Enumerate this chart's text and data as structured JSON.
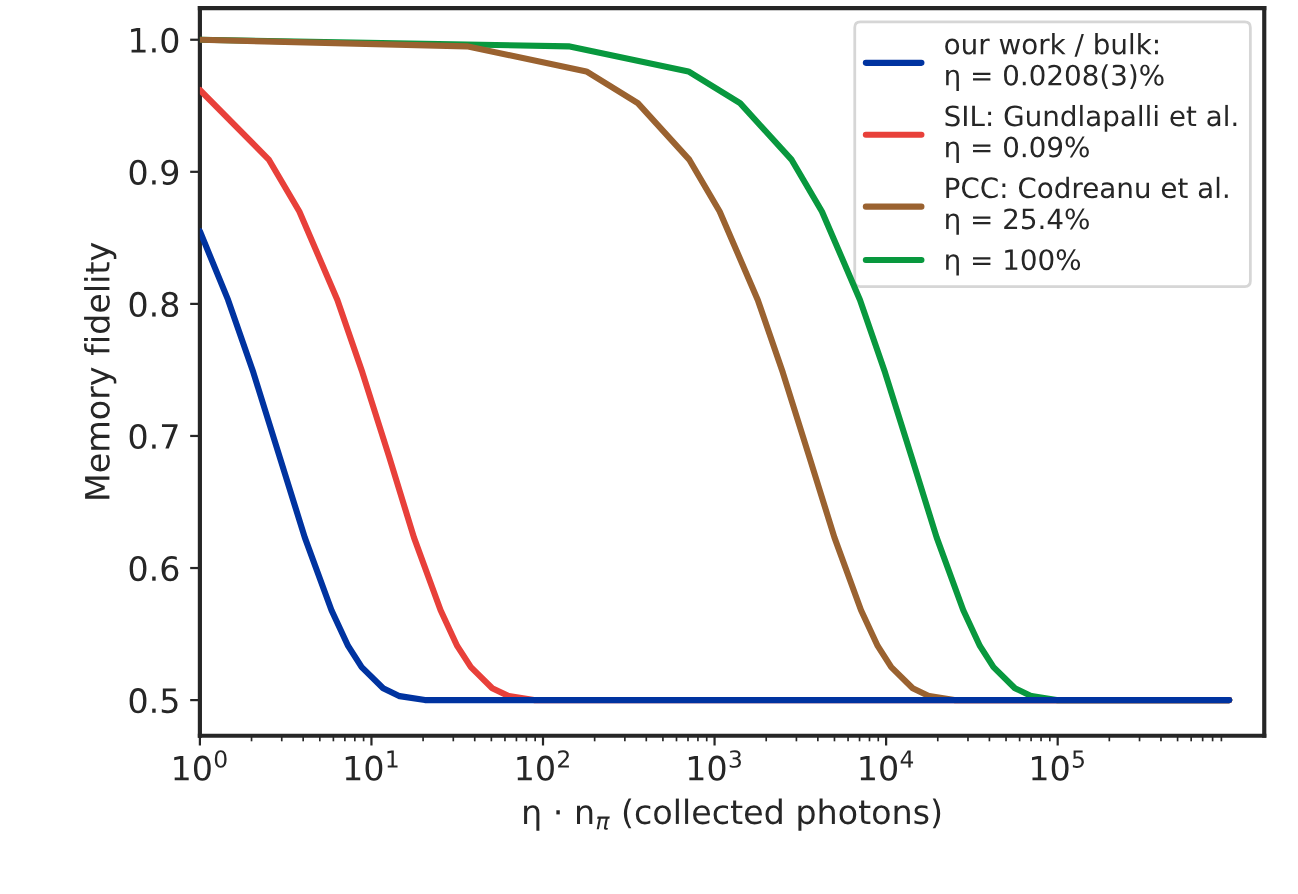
{
  "chart_data": {
    "type": "line",
    "xlabel": "η · n$_{π}$ (collected photons)",
    "ylabel": "Memory fidelity",
    "log": "x",
    "legend": "top right",
    "grid": false,
    "xlim": [
      1,
      1600000
    ],
    "xticks": [
      {
        "value": 1,
        "label": "10$^{0}$"
      },
      {
        "value": 10,
        "label": "10$^{1}$"
      },
      {
        "value": 100,
        "label": "10$^{2}$"
      },
      {
        "value": 1000,
        "label": "10$^{3}$"
      },
      {
        "value": 10000,
        "label": "10$^{4}$"
      },
      {
        "value": 100000,
        "label": "10$^{5}$"
      }
    ],
    "ylim": [
      0.473,
      1.024
    ],
    "yticks": [
      0.5,
      0.6,
      0.7,
      0.8,
      0.9,
      {
        "value": 1,
        "label": "1.0"
      }
    ],
    "series": [
      {
        "name": "our work / bulk:\nη = 0.0208(3)%",
        "color": "#0033a0",
        "x": [
          1,
          1.46,
          2.05,
          2.92,
          4.09,
          5.85,
          7.31,
          8.77,
          11.7,
          14.6,
          20.5,
          1000000
        ],
        "values": [
          0.855,
          0.803,
          0.748,
          0.684,
          0.623,
          0.568,
          0.541,
          0.525,
          0.509,
          0.503,
          0.5,
          0.5
        ]
      },
      {
        "name": "SIL: Gundlapalli et al.\nη = 0.09%",
        "color": "#e8403a",
        "x": [
          1,
          2.53,
          3.8,
          6.33,
          8.86,
          12.7,
          17.7,
          25.3,
          31.6,
          38,
          50.6,
          63.3,
          88.6,
          1000000
        ],
        "values": [
          0.962,
          0.909,
          0.87,
          0.803,
          0.748,
          0.684,
          0.623,
          0.568,
          0.541,
          0.525,
          0.509,
          0.503,
          0.5,
          0.5
        ]
      },
      {
        "name": "PCC: Codreanu et al.\nη = 25.4%",
        "color": "#9a6230",
        "x": [
          1,
          36,
          179,
          357,
          714,
          1071,
          1786,
          2500,
          3571,
          5000,
          7143,
          8929,
          10714,
          14286,
          17857,
          25000,
          1000000
        ],
        "values": [
          1.0,
          0.995,
          0.976,
          0.952,
          0.909,
          0.87,
          0.803,
          0.748,
          0.684,
          0.623,
          0.568,
          0.541,
          0.525,
          0.509,
          0.503,
          0.5,
          0.5
        ]
      },
      {
        "name": "η = 100%",
        "color": "#08983e",
        "x": [
          1,
          141,
          704,
          1408,
          2817,
          4225,
          7042,
          9859,
          14085,
          19718,
          28169,
          35211,
          42254,
          56338,
          70423,
          98592,
          1000000
        ],
        "values": [
          1.0,
          0.995,
          0.976,
          0.952,
          0.909,
          0.87,
          0.803,
          0.748,
          0.684,
          0.623,
          0.568,
          0.541,
          0.525,
          0.509,
          0.503,
          0.5,
          0.5
        ]
      }
    ]
  }
}
